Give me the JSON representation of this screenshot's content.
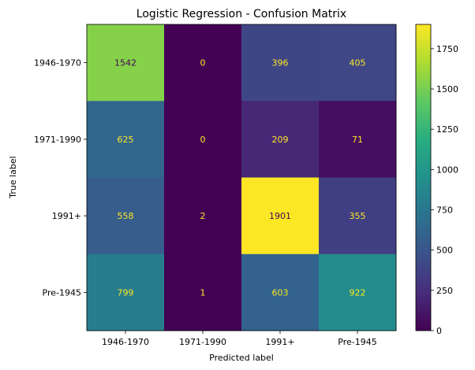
{
  "chart_data": {
    "type": "heatmap",
    "title": "Logistic Regression - Confusion Matrix",
    "xlabel": "Predicted label",
    "ylabel": "True label",
    "x_categories": [
      "1946-1970",
      "1971-1990",
      "1991+",
      "Pre-1945"
    ],
    "y_categories": [
      "1946-1970",
      "1971-1990",
      "1991+",
      "Pre-1945"
    ],
    "values": [
      [
        1542,
        0,
        396,
        405
      ],
      [
        625,
        0,
        209,
        71
      ],
      [
        558,
        2,
        1901,
        355
      ],
      [
        799,
        1,
        603,
        922
      ]
    ],
    "colormap": "viridis",
    "color_range": [
      0,
      1901
    ],
    "colorbar_ticks": [
      0,
      250,
      500,
      750,
      1000,
      1250,
      1500,
      1750
    ],
    "annotation_colors": {
      "on_dark": "#fde725",
      "on_light": "#440154"
    }
  }
}
